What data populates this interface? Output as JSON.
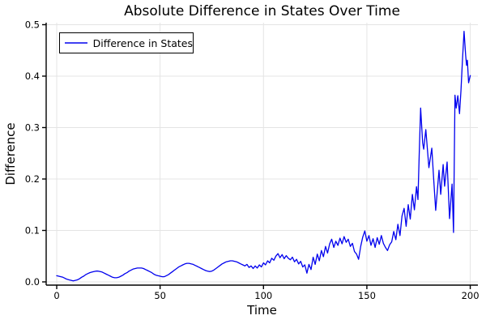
{
  "figure": {
    "title": "Absolute Difference in States Over Time",
    "xlabel": "Time",
    "ylabel": "Difference"
  },
  "legend": {
    "entries": [
      {
        "label": "Difference in States",
        "color": "#0000ee"
      }
    ],
    "position": "top-left"
  },
  "colors": {
    "line": "#0000ee",
    "grid": "#e4e4e4",
    "axis": "#000000",
    "text": "#000000"
  },
  "chart_data": {
    "type": "line",
    "title": "Absolute Difference in States Over Time",
    "xlabel": "Time",
    "ylabel": "Difference",
    "xlim": [
      -5.1,
      203.7
    ],
    "ylim": [
      -0.0063,
      0.5039
    ],
    "xticks": [
      0,
      50,
      100,
      150,
      200
    ],
    "yticks": [
      0.0,
      0.1,
      0.2,
      0.3,
      0.4,
      0.5
    ],
    "grid": true,
    "legend_position": "top-left",
    "series": [
      {
        "name": "Difference in States",
        "color": "#0000ee",
        "points": [
          [
            0,
            0.012
          ],
          [
            1,
            0.011
          ],
          [
            2,
            0.01
          ],
          [
            3,
            0.009
          ],
          [
            4,
            0.007
          ],
          [
            5,
            0.005
          ],
          [
            6,
            0.004
          ],
          [
            7,
            0.003
          ],
          [
            8,
            0.002
          ],
          [
            9,
            0.003
          ],
          [
            10,
            0.004
          ],
          [
            11,
            0.006
          ],
          [
            12,
            0.009
          ],
          [
            13,
            0.011
          ],
          [
            14,
            0.014
          ],
          [
            15,
            0.016
          ],
          [
            16,
            0.018
          ],
          [
            17,
            0.019
          ],
          [
            18,
            0.02
          ],
          [
            19,
            0.021
          ],
          [
            20,
            0.021
          ],
          [
            21,
            0.02
          ],
          [
            22,
            0.019
          ],
          [
            23,
            0.017
          ],
          [
            24,
            0.015
          ],
          [
            25,
            0.013
          ],
          [
            26,
            0.011
          ],
          [
            27,
            0.009
          ],
          [
            28,
            0.008
          ],
          [
            29,
            0.008
          ],
          [
            30,
            0.009
          ],
          [
            31,
            0.011
          ],
          [
            32,
            0.013
          ],
          [
            33,
            0.016
          ],
          [
            34,
            0.018
          ],
          [
            35,
            0.021
          ],
          [
            36,
            0.023
          ],
          [
            37,
            0.025
          ],
          [
            38,
            0.026
          ],
          [
            39,
            0.027
          ],
          [
            40,
            0.027
          ],
          [
            41,
            0.027
          ],
          [
            42,
            0.026
          ],
          [
            43,
            0.024
          ],
          [
            44,
            0.022
          ],
          [
            45,
            0.02
          ],
          [
            46,
            0.018
          ],
          [
            47,
            0.015
          ],
          [
            48,
            0.013
          ],
          [
            49,
            0.012
          ],
          [
            50,
            0.011
          ],
          [
            51,
            0.01
          ],
          [
            52,
            0.01
          ],
          [
            53,
            0.012
          ],
          [
            54,
            0.014
          ],
          [
            55,
            0.017
          ],
          [
            56,
            0.02
          ],
          [
            57,
            0.023
          ],
          [
            58,
            0.026
          ],
          [
            59,
            0.029
          ],
          [
            60,
            0.031
          ],
          [
            61,
            0.033
          ],
          [
            62,
            0.035
          ],
          [
            63,
            0.036
          ],
          [
            64,
            0.036
          ],
          [
            65,
            0.035
          ],
          [
            66,
            0.034
          ],
          [
            67,
            0.032
          ],
          [
            68,
            0.03
          ],
          [
            69,
            0.028
          ],
          [
            70,
            0.026
          ],
          [
            71,
            0.024
          ],
          [
            72,
            0.022
          ],
          [
            73,
            0.021
          ],
          [
            74,
            0.02
          ],
          [
            75,
            0.021
          ],
          [
            76,
            0.023
          ],
          [
            77,
            0.026
          ],
          [
            78,
            0.029
          ],
          [
            79,
            0.032
          ],
          [
            80,
            0.035
          ],
          [
            81,
            0.037
          ],
          [
            82,
            0.039
          ],
          [
            83,
            0.04
          ],
          [
            84,
            0.041
          ],
          [
            85,
            0.041
          ],
          [
            86,
            0.04
          ],
          [
            87,
            0.039
          ],
          [
            88,
            0.037
          ],
          [
            89,
            0.035
          ],
          [
            90,
            0.033
          ],
          [
            91,
            0.031
          ],
          [
            92,
            0.034
          ],
          [
            93,
            0.028
          ],
          [
            94,
            0.031
          ],
          [
            95,
            0.026
          ],
          [
            96,
            0.031
          ],
          [
            97,
            0.027
          ],
          [
            98,
            0.033
          ],
          [
            99,
            0.029
          ],
          [
            100,
            0.037
          ],
          [
            101,
            0.033
          ],
          [
            102,
            0.041
          ],
          [
            103,
            0.037
          ],
          [
            104,
            0.046
          ],
          [
            105,
            0.042
          ],
          [
            106,
            0.05
          ],
          [
            107,
            0.055
          ],
          [
            108,
            0.047
          ],
          [
            109,
            0.053
          ],
          [
            110,
            0.045
          ],
          [
            111,
            0.051
          ],
          [
            112,
            0.046
          ],
          [
            113,
            0.043
          ],
          [
            114,
            0.048
          ],
          [
            115,
            0.039
          ],
          [
            116,
            0.044
          ],
          [
            117,
            0.035
          ],
          [
            118,
            0.04
          ],
          [
            119,
            0.029
          ],
          [
            120,
            0.033
          ],
          [
            121,
            0.017
          ],
          [
            122,
            0.034
          ],
          [
            123,
            0.024
          ],
          [
            124,
            0.048
          ],
          [
            125,
            0.034
          ],
          [
            126,
            0.054
          ],
          [
            127,
            0.041
          ],
          [
            128,
            0.061
          ],
          [
            129,
            0.049
          ],
          [
            130,
            0.069
          ],
          [
            131,
            0.056
          ],
          [
            132,
            0.074
          ],
          [
            133,
            0.083
          ],
          [
            134,
            0.067
          ],
          [
            135,
            0.079
          ],
          [
            136,
            0.071
          ],
          [
            137,
            0.085
          ],
          [
            138,
            0.074
          ],
          [
            139,
            0.088
          ],
          [
            140,
            0.077
          ],
          [
            141,
            0.083
          ],
          [
            142,
            0.069
          ],
          [
            143,
            0.075
          ],
          [
            144,
            0.059
          ],
          [
            145,
            0.054
          ],
          [
            146,
            0.044
          ],
          [
            147,
            0.069
          ],
          [
            148,
            0.087
          ],
          [
            149,
            0.099
          ],
          [
            150,
            0.079
          ],
          [
            151,
            0.09
          ],
          [
            152,
            0.071
          ],
          [
            153,
            0.084
          ],
          [
            154,
            0.067
          ],
          [
            155,
            0.086
          ],
          [
            156,
            0.073
          ],
          [
            157,
            0.09
          ],
          [
            158,
            0.075
          ],
          [
            159,
            0.067
          ],
          [
            160,
            0.061
          ],
          [
            161,
            0.072
          ],
          [
            162,
            0.078
          ],
          [
            163,
            0.098
          ],
          [
            164,
            0.082
          ],
          [
            165,
            0.112
          ],
          [
            166,
            0.09
          ],
          [
            167,
            0.128
          ],
          [
            168,
            0.143
          ],
          [
            169,
            0.108
          ],
          [
            170,
            0.15
          ],
          [
            171,
            0.122
          ],
          [
            172,
            0.17
          ],
          [
            173,
            0.14
          ],
          [
            174,
            0.185
          ],
          [
            174.7,
            0.16
          ],
          [
            175.3,
            0.245
          ],
          [
            176,
            0.338
          ],
          [
            177,
            0.27
          ],
          [
            177.5,
            0.258
          ],
          [
            178.5,
            0.296
          ],
          [
            180,
            0.222
          ],
          [
            181.4,
            0.26
          ],
          [
            182.3,
            0.2
          ],
          [
            183.3,
            0.139
          ],
          [
            184.9,
            0.217
          ],
          [
            185.7,
            0.17
          ],
          [
            186.9,
            0.228
          ],
          [
            187.6,
            0.186
          ],
          [
            188.8,
            0.233
          ],
          [
            190,
            0.123
          ],
          [
            191.2,
            0.19
          ],
          [
            191.9,
            0.096
          ],
          [
            192.6,
            0.363
          ],
          [
            193.2,
            0.338
          ],
          [
            194,
            0.362
          ],
          [
            194.8,
            0.327
          ],
          [
            195.5,
            0.372
          ],
          [
            196.2,
            0.43
          ],
          [
            197,
            0.487
          ],
          [
            197.8,
            0.44
          ],
          [
            198.2,
            0.421
          ],
          [
            198.6,
            0.431
          ],
          [
            199.2,
            0.387
          ],
          [
            199.6,
            0.394
          ],
          [
            200,
            0.401
          ]
        ]
      }
    ]
  }
}
